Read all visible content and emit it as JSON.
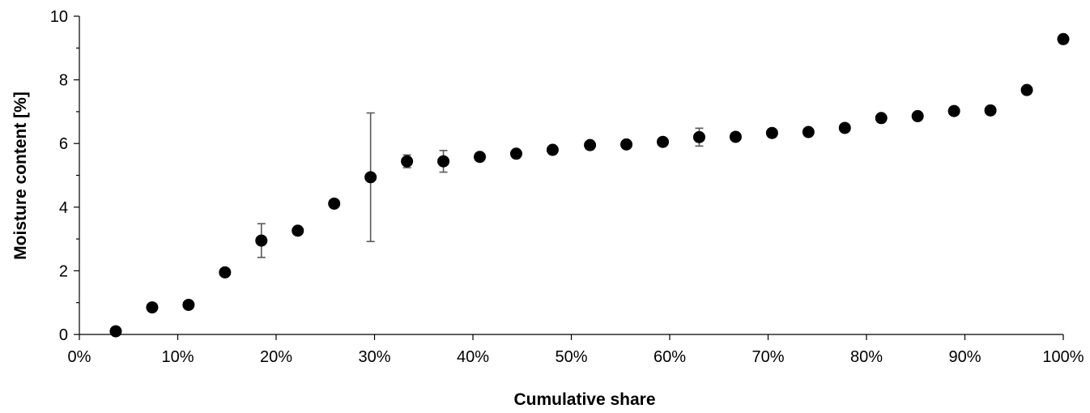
{
  "chart_data": {
    "type": "scatter",
    "title": "",
    "xlabel": "Cumulative share",
    "ylabel": "Moisture content [%]",
    "xlim": [
      0,
      1
    ],
    "ylim": [
      0,
      10
    ],
    "x_ticks": [
      "0%",
      "10%",
      "20%",
      "30%",
      "40%",
      "50%",
      "60%",
      "70%",
      "80%",
      "90%",
      "100%"
    ],
    "y_ticks": [
      "0",
      "2",
      "4",
      "6",
      "8",
      "10"
    ],
    "grid": false,
    "legend": "none",
    "marker_color": "#000000",
    "error_bar_color": "#595959",
    "points": [
      {
        "x": 0.037,
        "y": 0.1
      },
      {
        "x": 0.074,
        "y": 0.85
      },
      {
        "x": 0.111,
        "y": 0.93
      },
      {
        "x": 0.148,
        "y": 1.95
      },
      {
        "x": 0.185,
        "y": 2.95,
        "err_low": 2.42,
        "err_high": 3.48
      },
      {
        "x": 0.222,
        "y": 3.26
      },
      {
        "x": 0.259,
        "y": 4.11
      },
      {
        "x": 0.296,
        "y": 4.94,
        "err_low": 2.92,
        "err_high": 6.96
      },
      {
        "x": 0.333,
        "y": 5.44,
        "err_low": 5.24,
        "err_high": 5.64
      },
      {
        "x": 0.37,
        "y": 5.44,
        "err_low": 5.1,
        "err_high": 5.78
      },
      {
        "x": 0.407,
        "y": 5.58
      },
      {
        "x": 0.444,
        "y": 5.68
      },
      {
        "x": 0.481,
        "y": 5.8
      },
      {
        "x": 0.519,
        "y": 5.95
      },
      {
        "x": 0.556,
        "y": 5.97
      },
      {
        "x": 0.593,
        "y": 6.05
      },
      {
        "x": 0.63,
        "y": 6.2,
        "err_low": 5.92,
        "err_high": 6.48
      },
      {
        "x": 0.667,
        "y": 6.21
      },
      {
        "x": 0.704,
        "y": 6.33,
        "err_low": 6.2,
        "err_high": 6.46
      },
      {
        "x": 0.741,
        "y": 6.36
      },
      {
        "x": 0.778,
        "y": 6.49
      },
      {
        "x": 0.815,
        "y": 6.8
      },
      {
        "x": 0.852,
        "y": 6.86
      },
      {
        "x": 0.889,
        "y": 7.02
      },
      {
        "x": 0.926,
        "y": 7.04
      },
      {
        "x": 0.963,
        "y": 7.68
      },
      {
        "x": 1.0,
        "y": 9.28
      }
    ]
  }
}
